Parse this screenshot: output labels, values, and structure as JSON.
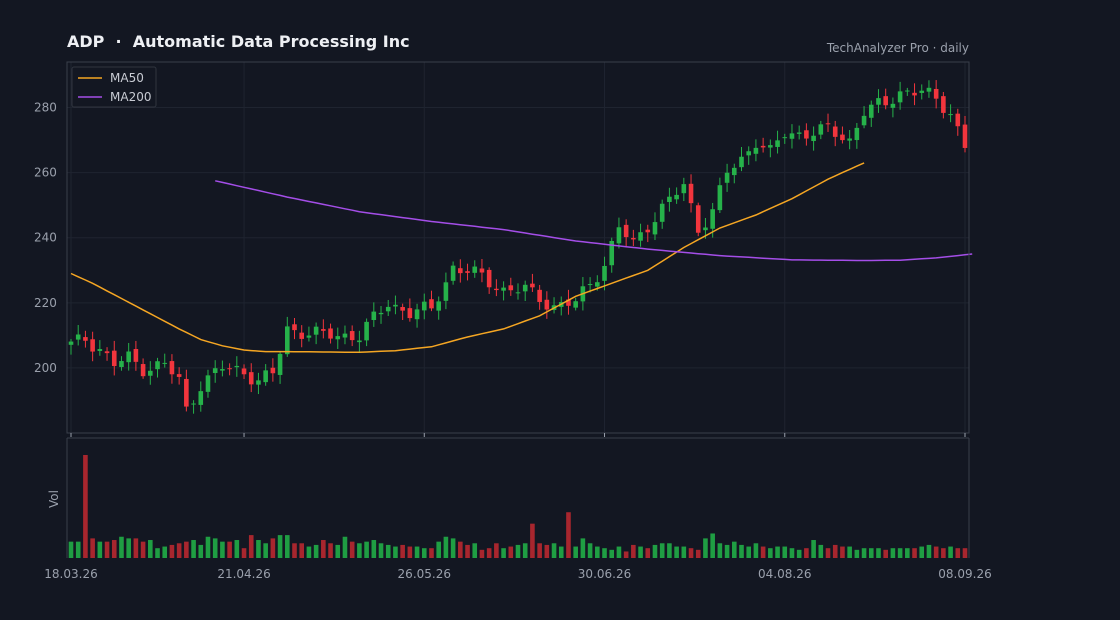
{
  "header": {
    "title": "ADP  ·  Automatic Data Processing Inc",
    "brand": "TechAnalyzer Pro · daily"
  },
  "colors": {
    "background": "#131722",
    "up": "#26b24a",
    "down": "#f2353d",
    "up_volume": "#1f9e43",
    "down_volume": "#a8262e",
    "ma50": "#f5a623",
    "ma200": "#a44ee8",
    "grid": "#1f2430",
    "axis": "#3a3f4b"
  },
  "chart_data": [
    {
      "type": "candlestick",
      "title": "ADP · Automatic Data Processing Inc",
      "ylim": [
        180,
        294
      ],
      "y_ticks": [
        200,
        220,
        240,
        260,
        280
      ],
      "grid": true,
      "legend": {
        "placement": "top-left",
        "entries": [
          "MA50",
          "MA200"
        ]
      },
      "x_date_labels": [
        {
          "index": 0,
          "label": "18.03.26"
        },
        {
          "index": 24,
          "label": "21.04.26"
        },
        {
          "index": 49,
          "label": "26.05.26"
        },
        {
          "index": 74,
          "label": "30.06.26"
        },
        {
          "index": 99,
          "label": "04.08.26"
        },
        {
          "index": 124,
          "label": "08.09.26"
        }
      ],
      "close_anchors": [
        [
          0,
          207
        ],
        [
          2,
          209
        ],
        [
          4,
          206
        ],
        [
          6,
          201
        ],
        [
          8,
          203
        ],
        [
          10,
          200
        ],
        [
          13,
          201
        ],
        [
          15,
          196
        ],
        [
          16,
          187
        ],
        [
          18,
          195
        ],
        [
          21,
          200
        ],
        [
          24,
          199
        ],
        [
          26,
          196
        ],
        [
          28,
          198
        ],
        [
          30,
          212
        ],
        [
          35,
          210
        ],
        [
          40,
          210
        ],
        [
          44,
          220
        ],
        [
          47,
          217
        ],
        [
          50,
          218
        ],
        [
          53,
          231
        ],
        [
          57,
          228
        ],
        [
          60,
          224
        ],
        [
          63,
          224
        ],
        [
          67,
          219
        ],
        [
          70,
          220
        ],
        [
          72,
          226
        ],
        [
          74,
          232
        ],
        [
          76,
          243
        ],
        [
          78,
          238
        ],
        [
          80,
          244
        ],
        [
          82,
          249
        ],
        [
          85,
          256
        ],
        [
          87,
          243
        ],
        [
          89,
          248
        ],
        [
          91,
          260
        ],
        [
          93,
          264
        ],
        [
          95,
          270
        ],
        [
          97,
          266
        ],
        [
          99,
          272
        ],
        [
          101,
          272
        ],
        [
          105,
          273
        ],
        [
          108,
          270
        ],
        [
          110,
          279
        ],
        [
          113,
          281
        ],
        [
          115,
          285
        ],
        [
          118,
          285
        ],
        [
          120,
          282
        ],
        [
          122,
          279
        ],
        [
          124,
          268
        ]
      ],
      "series": [
        {
          "name": "MA50",
          "start_index": 0,
          "anchors": [
            [
              0,
              229
            ],
            [
              3,
              226
            ],
            [
              6,
              222.5
            ],
            [
              9,
              219
            ],
            [
              12,
              215.5
            ],
            [
              15,
              212
            ],
            [
              18,
              208.7
            ],
            [
              21,
              206.8
            ],
            [
              24,
              205.5
            ],
            [
              27,
              205
            ],
            [
              30,
              205
            ],
            [
              35,
              204.9
            ],
            [
              40,
              204.8
            ],
            [
              45,
              205.3
            ],
            [
              50,
              206.5
            ],
            [
              55,
              209.5
            ],
            [
              60,
              212
            ],
            [
              65,
              216
            ],
            [
              70,
              222
            ],
            [
              75,
              226
            ],
            [
              80,
              230
            ],
            [
              85,
              237
            ],
            [
              90,
              243
            ],
            [
              95,
              247
            ],
            [
              100,
              252
            ],
            [
              105,
              258
            ],
            [
              110,
              263
            ]
          ]
        },
        {
          "name": "MA200",
          "start_index": 20,
          "anchors": [
            [
              0,
              257.5
            ],
            [
              10,
              252.5
            ],
            [
              20,
              248
            ],
            [
              30,
              245
            ],
            [
              40,
              242.5
            ],
            [
              50,
              239
            ],
            [
              60,
              236.5
            ],
            [
              70,
              234.5
            ],
            [
              80,
              233.2
            ],
            [
              90,
              233
            ],
            [
              95,
              233.1
            ],
            [
              100,
              233.8
            ],
            [
              105,
              235
            ]
          ]
        }
      ]
    },
    {
      "type": "bar",
      "ylabel": "Vol",
      "grid": false,
      "volume_levels": [
        1,
        1,
        6.3,
        1.2,
        1,
        1,
        1.1,
        1.3,
        1.2,
        1.2,
        1,
        1.1,
        0.6,
        0.7,
        0.8,
        0.9,
        1,
        1.1,
        0.8,
        1.3,
        1.2,
        1,
        1,
        1.1,
        0.6,
        1.4,
        1.1,
        0.9,
        1.2,
        1.4,
        1.4,
        0.9,
        0.9,
        0.7,
        0.8,
        1.1,
        0.9,
        0.8,
        1.3,
        1,
        0.9,
        1,
        1.1,
        0.9,
        0.8,
        0.7,
        0.8,
        0.7,
        0.7,
        0.6,
        0.6,
        1,
        1.3,
        1.2,
        1,
        0.8,
        0.9,
        0.5,
        0.6,
        0.9,
        0.6,
        0.7,
        0.8,
        0.9,
        2.1,
        0.9,
        0.8,
        0.9,
        0.7,
        2.8,
        0.7,
        1.2,
        0.9,
        0.7,
        0.6,
        0.5,
        0.7,
        0.4,
        0.8,
        0.7,
        0.6,
        0.8,
        0.9,
        0.9,
        0.7,
        0.7,
        0.6,
        0.5,
        1.2,
        1.5,
        0.9,
        0.8,
        1,
        0.8,
        0.7,
        0.9,
        0.7,
        0.6,
        0.7,
        0.7,
        0.6,
        0.5,
        0.6,
        1.1,
        0.8,
        0.6,
        0.8,
        0.7,
        0.7,
        0.5,
        0.6,
        0.6,
        0.6,
        0.5,
        0.6,
        0.6,
        0.6,
        0.6,
        0.7,
        0.8,
        0.7,
        0.6,
        0.7,
        0.6,
        0.6
      ]
    }
  ]
}
